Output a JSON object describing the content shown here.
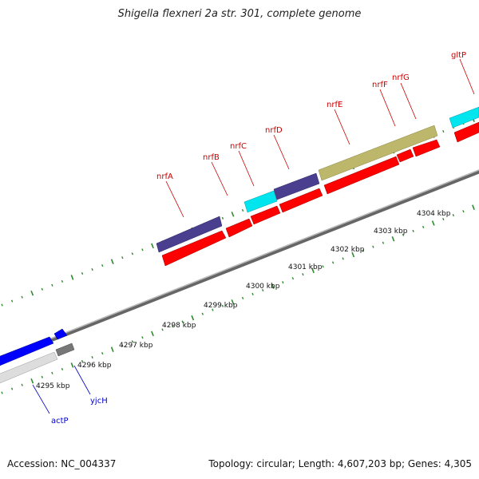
{
  "title": "Shigella flexneri 2a str. 301, complete genome",
  "footer": {
    "accession": "Accession: NC_004337",
    "summary": "Topology: circular; Length: 4,607,203 bp; Genes: 4,305"
  },
  "colors": {
    "backbone": "#888888",
    "tick": "#2e8b2e",
    "gene_red": "#ff0000",
    "gene_blue": "#0000ff",
    "gene_navy": "#4a3f8f",
    "gene_cyan": "#00e5ee",
    "gene_olive": "#bdb76b",
    "gene_grey": "#777777",
    "gene_white": "#dddddd",
    "label_red": "#cc0000",
    "label_blue": "#0000cc"
  },
  "scale": {
    "ticks": [
      "4295 kbp",
      "4296 kbp",
      "4297 kbp",
      "4298 kbp",
      "4299 kbp",
      "4300 kbp",
      "4301 kbp",
      "4302 kbp",
      "4303 kbp",
      "4304 kbp"
    ]
  },
  "genes": [
    {
      "name": "nrfA",
      "color": "label_red"
    },
    {
      "name": "nrfB",
      "color": "label_red"
    },
    {
      "name": "nrfC",
      "color": "label_red"
    },
    {
      "name": "nrfD",
      "color": "label_red"
    },
    {
      "name": "nrfE",
      "color": "label_red"
    },
    {
      "name": "nrfF",
      "color": "label_red"
    },
    {
      "name": "nrfG",
      "color": "label_red"
    },
    {
      "name": "gltP",
      "color": "label_red"
    },
    {
      "name": "actP",
      "color": "label_blue"
    },
    {
      "name": "yjcH",
      "color": "label_blue"
    }
  ]
}
